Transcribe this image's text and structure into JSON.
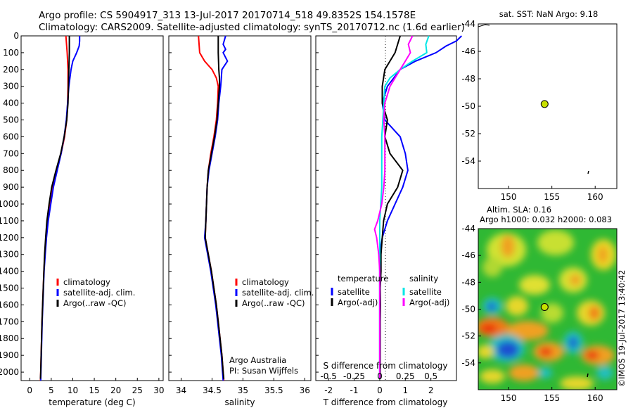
{
  "header": {
    "line1": "Argo profile: CS 5904917_313 13-Jul-2017 20170714_518 49.8352S 154.1578E",
    "line2": "Climatology: CARS2009. Satellite-adjusted climatology: synTS_20170712.nc (1.6d earlier)"
  },
  "colors": {
    "argo": "#000000",
    "clim": "#ff0000",
    "sat": "#0000ff",
    "sal_sat": "#00e6e6",
    "sal_argo": "#ff00ff",
    "float": "#c8e000"
  },
  "chart_data": [
    {
      "type": "line",
      "id": "temperature",
      "xlabel": "temperature (deg C)",
      "ylabel": "",
      "xlim": [
        -2,
        31
      ],
      "ylim": [
        2050,
        0
      ],
      "xticks": [
        "0",
        "5",
        "10",
        "15",
        "20",
        "25",
        "30"
      ],
      "xtick_values": [
        0,
        5,
        10,
        15,
        20,
        25,
        30
      ],
      "yticks": [
        "0",
        "100",
        "200",
        "300",
        "400",
        "500",
        "600",
        "700",
        "800",
        "900",
        "1000",
        "1100",
        "1200",
        "1300",
        "1400",
        "1500",
        "1600",
        "1700",
        "1800",
        "1900",
        "2000"
      ],
      "legend": [
        "climatology",
        "satellite-adj. clim.",
        "Argo(..raw -QC)"
      ],
      "series": [
        {
          "name": "climatology",
          "color": "#ff0000",
          "depth": [
            0,
            100,
            200,
            300,
            400,
            500,
            600,
            700,
            800,
            900,
            1000,
            1100,
            1200,
            1300,
            1400,
            1500,
            1600,
            1700,
            1800,
            1900,
            2000,
            2050
          ],
          "values": [
            8.4,
            8.7,
            8.9,
            8.9,
            8.8,
            8.6,
            8.1,
            7.3,
            6.2,
            5.2,
            4.6,
            4.1,
            3.8,
            3.5,
            3.3,
            3.15,
            3.0,
            2.85,
            2.75,
            2.65,
            2.55,
            2.5
          ]
        },
        {
          "name": "satellite-adj. clim.",
          "color": "#0000ff",
          "depth": [
            0,
            30,
            60,
            100,
            150,
            200,
            300,
            400,
            500,
            600,
            700,
            800,
            900,
            1000,
            1100,
            1200,
            1300,
            1400,
            1500,
            1600,
            1700,
            1800,
            1900,
            2000,
            2050
          ],
          "values": [
            11.6,
            11.6,
            11.5,
            10.9,
            10.0,
            9.6,
            9.1,
            8.8,
            8.5,
            8.0,
            7.3,
            6.4,
            5.5,
            4.9,
            4.3,
            3.9,
            3.6,
            3.35,
            3.2,
            3.05,
            2.9,
            2.8,
            2.7,
            2.6,
            2.55
          ]
        },
        {
          "name": "Argo(..raw -QC)",
          "color": "#000000",
          "depth": [
            0,
            50,
            100,
            200,
            300,
            400,
            500,
            600,
            700,
            800,
            900,
            1000,
            1100,
            1200,
            1300,
            1400,
            1500,
            1600,
            1700,
            1800,
            1900,
            2000,
            2040
          ],
          "values": [
            9.2,
            9.2,
            9.2,
            9.1,
            9.0,
            8.9,
            8.6,
            8.0,
            7.2,
            6.1,
            5.1,
            4.5,
            4.0,
            3.7,
            3.45,
            3.3,
            3.15,
            3.0,
            2.85,
            2.75,
            2.65,
            2.55,
            2.5
          ]
        }
      ]
    },
    {
      "type": "line",
      "id": "salinity",
      "xlabel": "salinity",
      "ylabel": "",
      "xlim": [
        33.8,
        36.1
      ],
      "ylim": [
        2050,
        0
      ],
      "xticks": [
        "34",
        "34.5",
        "35",
        "35.5",
        "36"
      ],
      "xtick_values": [
        34,
        34.5,
        35,
        35.5,
        36
      ],
      "legend": [
        "climatology",
        "satellite-adj. clim.",
        "Argo(..raw -QC)"
      ],
      "series": [
        {
          "name": "climatology",
          "color": "#ff0000",
          "depth": [
            0,
            100,
            150,
            200,
            250,
            300,
            400,
            500,
            600,
            700,
            800,
            900,
            1000,
            1100,
            1200,
            1300,
            1400,
            1500,
            1600,
            1700,
            1800,
            1900,
            2000,
            2050
          ],
          "values": [
            34.28,
            34.3,
            34.38,
            34.5,
            34.57,
            34.6,
            34.59,
            34.57,
            34.53,
            34.48,
            34.44,
            34.42,
            34.41,
            34.4,
            34.39,
            34.44,
            34.49,
            34.53,
            34.57,
            34.6,
            34.63,
            34.66,
            34.68,
            34.69
          ]
        },
        {
          "name": "satellite-adj. clim.",
          "color": "#0000ff",
          "depth": [
            0,
            50,
            80,
            100,
            150,
            200,
            250,
            300,
            400,
            500,
            600,
            700,
            800,
            900,
            1000,
            1100,
            1200,
            1300,
            1400,
            1500,
            1600,
            1700,
            1800,
            1900,
            2000,
            2050
          ],
          "values": [
            34.72,
            34.68,
            34.72,
            34.68,
            34.75,
            34.66,
            34.65,
            34.64,
            34.61,
            34.59,
            34.55,
            34.5,
            34.45,
            34.42,
            34.41,
            34.4,
            34.38,
            34.43,
            34.48,
            34.52,
            34.56,
            34.59,
            34.62,
            34.65,
            34.67,
            34.68
          ]
        },
        {
          "name": "Argo(..raw -QC)",
          "color": "#000000",
          "depth": [
            0,
            100,
            200,
            250,
            300,
            400,
            500,
            600,
            700,
            800,
            900,
            1000,
            1100,
            1200,
            1300,
            1400,
            1500,
            1600,
            1700,
            1800,
            1900,
            2000,
            2040
          ],
          "values": [
            34.6,
            34.6,
            34.61,
            34.62,
            34.62,
            34.6,
            34.58,
            34.54,
            34.49,
            34.44,
            34.42,
            34.41,
            34.4,
            34.39,
            34.44,
            34.49,
            34.53,
            34.57,
            34.6,
            34.63,
            34.66,
            34.68,
            34.69
          ]
        }
      ],
      "annotation": [
        "Argo Australia",
        "PI: Susan Wijffels"
      ]
    },
    {
      "type": "line",
      "id": "differences",
      "xlabel": "T difference from climatology",
      "x2label": "S difference from climatology",
      "xlim": [
        -2.5,
        3.0
      ],
      "ylim": [
        2050,
        0
      ],
      "xticks": [
        "-2",
        "-1",
        "0",
        "1",
        "2"
      ],
      "xtick_values": [
        -2,
        -1,
        0,
        1,
        2
      ],
      "s_ticks": [
        "-0.5",
        "-0.25",
        "0",
        "0.25",
        "0.5"
      ],
      "s_tick_values": [
        -0.5,
        -0.25,
        0,
        0.25,
        0.5
      ],
      "legend_titles": [
        "temperature",
        "salinity"
      ],
      "legend": [
        "satellite",
        "Argo(-adj)",
        "satellite",
        "Argo(-adj)"
      ],
      "series": [
        {
          "name": "satellite",
          "group": "temperature",
          "color": "#0000ff",
          "depth": [
            0,
            30,
            60,
            100,
            150,
            200,
            300,
            400,
            500,
            600,
            700,
            800,
            900,
            1000,
            1100,
            1200,
            1300,
            1400,
            1500,
            1600,
            1700,
            1800,
            1900,
            2000,
            2040
          ],
          "values": [
            3.2,
            3.0,
            2.6,
            2.2,
            1.4,
            0.8,
            0.3,
            0.1,
            0.2,
            0.8,
            1.0,
            1.1,
            0.9,
            0.6,
            0.3,
            0.1,
            0.0,
            0.0,
            0.0,
            0.0,
            0.0,
            0.0,
            0.0,
            0.0,
            0.0
          ]
        },
        {
          "name": "Argo(-adj)",
          "group": "temperature",
          "color": "#000000",
          "depth": [
            0,
            100,
            200,
            300,
            400,
            500,
            600,
            700,
            800,
            900,
            1000,
            1100,
            1200,
            1300,
            1400,
            1500,
            1600,
            1700,
            1800,
            1900,
            2000,
            2040
          ],
          "values": [
            0.8,
            0.6,
            0.2,
            0.1,
            0.1,
            0.3,
            0.2,
            0.4,
            0.9,
            0.7,
            0.3,
            0.15,
            0.1,
            0.05,
            0.05,
            0.02,
            0.03,
            0.02,
            0.02,
            0.02,
            0.02,
            0.02
          ]
        },
        {
          "name": "satellite",
          "group": "salinity",
          "color": "#00e6e6",
          "depth": [
            0,
            50,
            100,
            150,
            200,
            250,
            300,
            400,
            500,
            600,
            700,
            800,
            900,
            1000,
            1100,
            1200,
            1300,
            1400,
            1500,
            1600,
            1700,
            1800,
            1900,
            2000,
            2040
          ],
          "values": [
            0.48,
            0.45,
            0.46,
            0.32,
            0.2,
            0.1,
            0.05,
            0.04,
            0.03,
            0.02,
            0.02,
            0.02,
            0.02,
            0.01,
            0.0,
            0.0,
            0.0,
            0.0,
            0.0,
            0.0,
            0.0,
            0.0,
            0.0,
            0.0,
            0.0
          ]
        },
        {
          "name": "Argo(-adj)",
          "group": "salinity",
          "color": "#ff00ff",
          "depth": [
            0,
            50,
            100,
            150,
            200,
            250,
            300,
            400,
            500,
            600,
            700,
            800,
            900,
            1000,
            1100,
            1150,
            1200,
            1300,
            1400,
            1500,
            1600,
            1700,
            1800,
            1900,
            2000,
            2040
          ],
          "values": [
            0.32,
            0.28,
            0.3,
            0.25,
            0.2,
            0.15,
            0.1,
            0.05,
            0.04,
            0.05,
            0.05,
            0.05,
            0.04,
            0.02,
            -0.02,
            -0.05,
            -0.03,
            -0.01,
            0.0,
            0.0,
            0.0,
            0.0,
            0.0,
            0.0,
            0.0,
            0.0
          ]
        }
      ]
    },
    {
      "type": "scatter",
      "id": "sst_map",
      "title": "sat. SST: NaN Argo: 9.18",
      "xlim": [
        146.5,
        162.5
      ],
      "ylim": [
        -56,
        -44
      ],
      "xticks": [
        "150",
        "155",
        "160"
      ],
      "xtick_values": [
        150,
        155,
        160
      ],
      "yticks": [
        "-44",
        "-46",
        "-48",
        "-50",
        "-52",
        "-54"
      ],
      "ytick_values": [
        -44,
        -46,
        -48,
        -50,
        -52,
        -54
      ],
      "points": [
        {
          "x": 154.16,
          "y": -49.84
        }
      ]
    },
    {
      "type": "heatmap",
      "id": "sla_map",
      "title": "Altim. SLA: 0.16",
      "subtitle": "Argo h1000: 0.032 h2000: 0.083",
      "xlim": [
        146.5,
        162.5
      ],
      "ylim": [
        -56,
        -44
      ],
      "xticks": [
        "150",
        "155",
        "160"
      ],
      "xtick_values": [
        150,
        155,
        160
      ],
      "yticks": [
        "-44",
        "-46",
        "-48",
        "-50",
        "-52",
        "-54"
      ],
      "ytick_values": [
        -44,
        -46,
        -48,
        -50,
        -52,
        -54
      ],
      "points": [
        {
          "x": 154.16,
          "y": -49.84
        }
      ]
    }
  ],
  "credit": "©IMOS 19-Jul-2017 13:40:42"
}
